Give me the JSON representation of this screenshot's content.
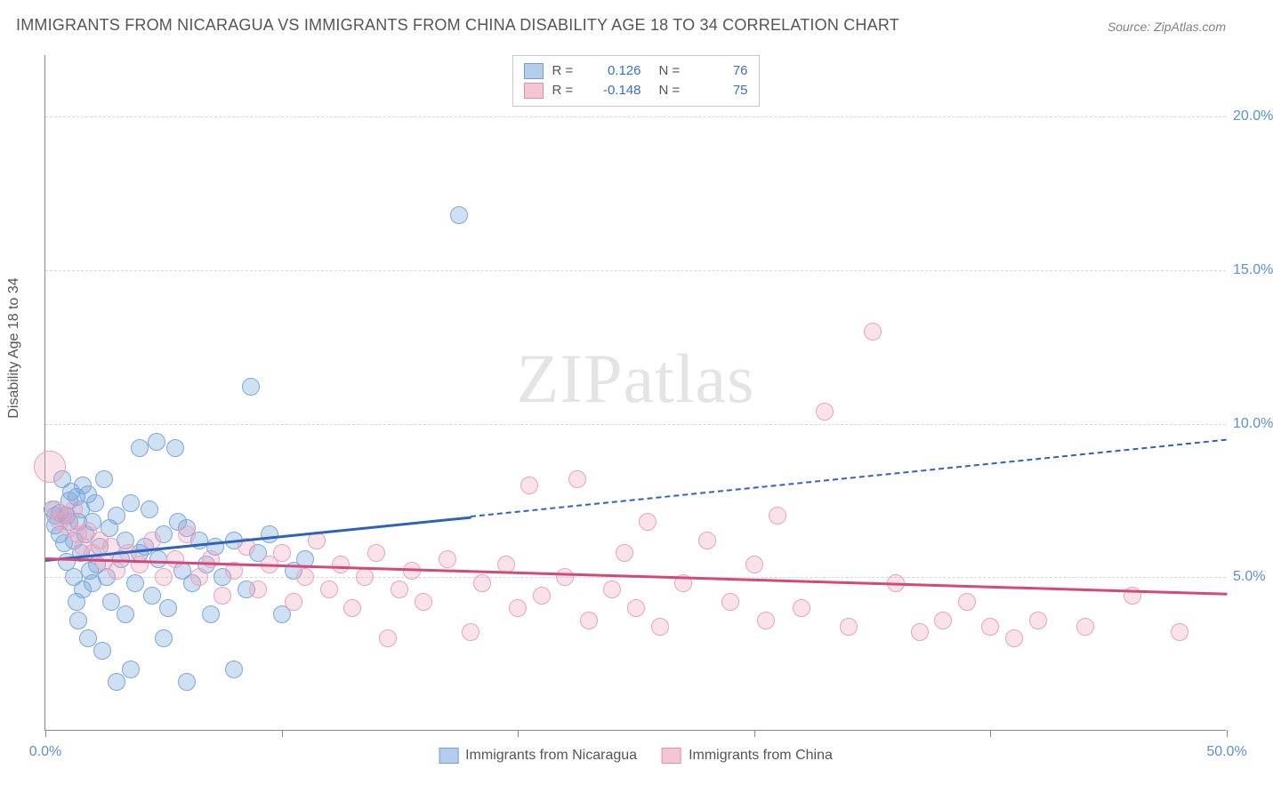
{
  "title": "IMMIGRANTS FROM NICARAGUA VS IMMIGRANTS FROM CHINA DISABILITY AGE 18 TO 34 CORRELATION CHART",
  "source": "Source: ZipAtlas.com",
  "ylabel": "Disability Age 18 to 34",
  "watermark": "ZIPatlas",
  "chart": {
    "type": "scatter",
    "background_color": "#ffffff",
    "grid_color": "#d8d8d8",
    "axis_color": "#888888",
    "xlim": [
      0,
      50
    ],
    "ylim": [
      0,
      22
    ],
    "xtick_step": 10,
    "yticks": [
      5,
      10,
      15,
      20
    ],
    "ytick_labels": [
      "5.0%",
      "10.0%",
      "15.0%",
      "20.0%"
    ],
    "xtick_show_labels": [
      0,
      50
    ],
    "xtick_labels": {
      "0": "0.0%",
      "50": "50.0%"
    },
    "label_fontsize": 16,
    "title_fontsize": 18,
    "tick_color": "#5b8fd6",
    "marker_radius": 10,
    "marker_stroke_width": 1.5,
    "trend_line_width": 2.5
  },
  "series": [
    {
      "name": "Immigrants from Nicaragua",
      "fill_color": "rgba(120,165,220,0.35)",
      "stroke_color": "#7aa8dd",
      "swatch_fill": "#b5cdec",
      "swatch_border": "#6f9dd6",
      "trend_color": "#2e62c0",
      "R": "0.126",
      "N": "76",
      "trend": {
        "x1": 0,
        "y1": 5.6,
        "x2_solid": 18,
        "y2_solid": 7.0,
        "x2": 50,
        "y2": 9.5
      },
      "points": [
        [
          0.3,
          7.2
        ],
        [
          0.4,
          7.0
        ],
        [
          0.4,
          6.7
        ],
        [
          0.6,
          7.1
        ],
        [
          0.6,
          6.4
        ],
        [
          0.7,
          8.2
        ],
        [
          0.8,
          7.0
        ],
        [
          0.8,
          6.1
        ],
        [
          0.9,
          7.0
        ],
        [
          0.9,
          5.5
        ],
        [
          1.0,
          7.5
        ],
        [
          1.0,
          6.8
        ],
        [
          1.1,
          7.8
        ],
        [
          1.2,
          6.2
        ],
        [
          1.2,
          5.0
        ],
        [
          1.3,
          7.6
        ],
        [
          1.3,
          4.2
        ],
        [
          1.4,
          6.8
        ],
        [
          1.4,
          3.6
        ],
        [
          1.5,
          7.2
        ],
        [
          1.5,
          5.8
        ],
        [
          1.6,
          8.0
        ],
        [
          1.6,
          4.6
        ],
        [
          1.7,
          6.4
        ],
        [
          1.8,
          7.7
        ],
        [
          1.8,
          3.0
        ],
        [
          1.9,
          5.2
        ],
        [
          2.0,
          6.8
        ],
        [
          2.0,
          4.8
        ],
        [
          2.1,
          7.4
        ],
        [
          2.2,
          5.4
        ],
        [
          2.3,
          6.0
        ],
        [
          2.4,
          2.6
        ],
        [
          2.5,
          8.2
        ],
        [
          2.6,
          5.0
        ],
        [
          2.7,
          6.6
        ],
        [
          2.8,
          4.2
        ],
        [
          3.0,
          7.0
        ],
        [
          3.0,
          1.6
        ],
        [
          3.2,
          5.6
        ],
        [
          3.4,
          6.2
        ],
        [
          3.4,
          3.8
        ],
        [
          3.6,
          7.4
        ],
        [
          3.6,
          2.0
        ],
        [
          3.8,
          4.8
        ],
        [
          4.0,
          5.8
        ],
        [
          4.0,
          9.2
        ],
        [
          4.2,
          6.0
        ],
        [
          4.4,
          7.2
        ],
        [
          4.5,
          4.4
        ],
        [
          4.7,
          9.4
        ],
        [
          4.8,
          5.6
        ],
        [
          5.0,
          6.4
        ],
        [
          5.0,
          3.0
        ],
        [
          5.2,
          4.0
        ],
        [
          5.5,
          9.2
        ],
        [
          5.6,
          6.8
        ],
        [
          5.8,
          5.2
        ],
        [
          6.0,
          6.6
        ],
        [
          6.0,
          1.6
        ],
        [
          6.2,
          4.8
        ],
        [
          6.5,
          6.2
        ],
        [
          6.8,
          5.4
        ],
        [
          7.0,
          3.8
        ],
        [
          7.2,
          6.0
        ],
        [
          7.5,
          5.0
        ],
        [
          8.0,
          6.2
        ],
        [
          8.0,
          2.0
        ],
        [
          8.5,
          4.6
        ],
        [
          8.7,
          11.2
        ],
        [
          9.0,
          5.8
        ],
        [
          9.5,
          6.4
        ],
        [
          10.0,
          3.8
        ],
        [
          10.5,
          5.2
        ],
        [
          11.0,
          5.6
        ],
        [
          17.5,
          16.8
        ]
      ]
    },
    {
      "name": "Immigrants from China",
      "fill_color": "rgba(240,160,185,0.30)",
      "stroke_color": "#eba2ba",
      "swatch_fill": "#f4c6d4",
      "swatch_border": "#e58ca9",
      "trend_color": "#d6487a",
      "R": "-0.148",
      "N": "75",
      "trend": {
        "x1": 0,
        "y1": 5.65,
        "x2_solid": 50,
        "y2_solid": 4.5,
        "x2": 50,
        "y2": 4.5
      },
      "points": [
        [
          0.2,
          8.6,
          18
        ],
        [
          0.4,
          7.2
        ],
        [
          0.6,
          6.8
        ],
        [
          0.8,
          7.0
        ],
        [
          1.0,
          6.6
        ],
        [
          1.2,
          7.2
        ],
        [
          1.4,
          6.4
        ],
        [
          1.6,
          6.0
        ],
        [
          1.8,
          6.5
        ],
        [
          2.0,
          5.8
        ],
        [
          2.3,
          6.2
        ],
        [
          2.5,
          5.5
        ],
        [
          2.8,
          6.0
        ],
        [
          3.0,
          5.2
        ],
        [
          3.5,
          5.8
        ],
        [
          4.0,
          5.4
        ],
        [
          4.5,
          6.2
        ],
        [
          5.0,
          5.0
        ],
        [
          5.5,
          5.6
        ],
        [
          6.0,
          6.4
        ],
        [
          6.5,
          5.0
        ],
        [
          7.0,
          5.6
        ],
        [
          7.5,
          4.4
        ],
        [
          8.0,
          5.2
        ],
        [
          8.5,
          6.0
        ],
        [
          9.0,
          4.6
        ],
        [
          9.5,
          5.4
        ],
        [
          10.0,
          5.8
        ],
        [
          10.5,
          4.2
        ],
        [
          11.0,
          5.0
        ],
        [
          11.5,
          6.2
        ],
        [
          12.0,
          4.6
        ],
        [
          12.5,
          5.4
        ],
        [
          13.0,
          4.0
        ],
        [
          13.5,
          5.0
        ],
        [
          14.0,
          5.8
        ],
        [
          14.5,
          3.0
        ],
        [
          15.0,
          4.6
        ],
        [
          15.5,
          5.2
        ],
        [
          16.0,
          4.2
        ],
        [
          17.0,
          5.6
        ],
        [
          18.0,
          3.2
        ],
        [
          18.5,
          4.8
        ],
        [
          19.5,
          5.4
        ],
        [
          20.0,
          4.0
        ],
        [
          20.5,
          8.0
        ],
        [
          21.0,
          4.4
        ],
        [
          22.0,
          5.0
        ],
        [
          22.5,
          8.2
        ],
        [
          23.0,
          3.6
        ],
        [
          24.0,
          4.6
        ],
        [
          24.5,
          5.8
        ],
        [
          25.0,
          4.0
        ],
        [
          25.5,
          6.8
        ],
        [
          26.0,
          3.4
        ],
        [
          27.0,
          4.8
        ],
        [
          28.0,
          6.2
        ],
        [
          29.0,
          4.2
        ],
        [
          30.0,
          5.4
        ],
        [
          30.5,
          3.6
        ],
        [
          31.0,
          7.0
        ],
        [
          32.0,
          4.0
        ],
        [
          33.0,
          10.4
        ],
        [
          34.0,
          3.4
        ],
        [
          35.0,
          13.0
        ],
        [
          36.0,
          4.8
        ],
        [
          37.0,
          3.2
        ],
        [
          38.0,
          3.6
        ],
        [
          39.0,
          4.2
        ],
        [
          40.0,
          3.4
        ],
        [
          41.0,
          3.0
        ],
        [
          42.0,
          3.6
        ],
        [
          44.0,
          3.4
        ],
        [
          46.0,
          4.4
        ],
        [
          48.0,
          3.2
        ]
      ]
    }
  ],
  "legend_top": {
    "r_label": "R  =",
    "n_label": "N  ="
  },
  "legend_bottom_items": [
    {
      "swatch": 0,
      "label": "Immigrants from Nicaragua"
    },
    {
      "swatch": 1,
      "label": "Immigrants from China"
    }
  ]
}
